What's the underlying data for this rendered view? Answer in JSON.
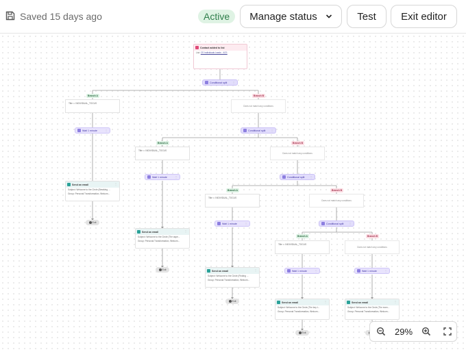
{
  "header": {
    "saved_text": "Saved 15 days ago",
    "status_badge": "Active",
    "manage_status_label": "Manage status",
    "test_label": "Test",
    "exit_label": "Exit editor"
  },
  "zoom": {
    "level": "29%"
  },
  "colors": {
    "active_bg": "#dff3e4",
    "active_text": "#2e7d4a",
    "split_accent": "#8d7fe0",
    "branch_a": "#2e6b44",
    "branch_b": "#a3334f",
    "email_accent": "#2aa198",
    "trigger_accent": "#e04a78"
  },
  "flow": {
    "trigger": {
      "title": "Contact added to list",
      "list_prefix": "List:",
      "list_name": "CS Individuals Leads - 4/21"
    },
    "split_label": "Conditional split",
    "wait_label": "Wait 1 minute",
    "branch_a": "Branch A",
    "branch_b": "Branch B",
    "filter_text": "Title  ⊃  INDIVIDUAL_TOCUS",
    "no_match_text": "Does not match any conditions",
    "email_title": "Send an email",
    "exit_label": "Exit",
    "emails": [
      {
        "subject": "Subject: Welcome to the Circle (Breaking ...",
        "group": "Group: Personal Transformation, Welcom..."
      },
      {
        "subject": "Subject: Welcome to the Circle (The aspe...",
        "group": "Group: Personal Transformation, Welcom..."
      },
      {
        "subject": "Subject: Welcome to the Circle (Finding ...",
        "group": "Group: Personal Transformation, Welcom..."
      },
      {
        "subject": "Subject: Welcome to the Circle (The key t...",
        "group": "Group: Personal Transformation, Welcom..."
      },
      {
        "subject": "Subject: Welcome to the Circle (The even...",
        "group": "Group: Personal Transformation, Welcom..."
      }
    ]
  }
}
